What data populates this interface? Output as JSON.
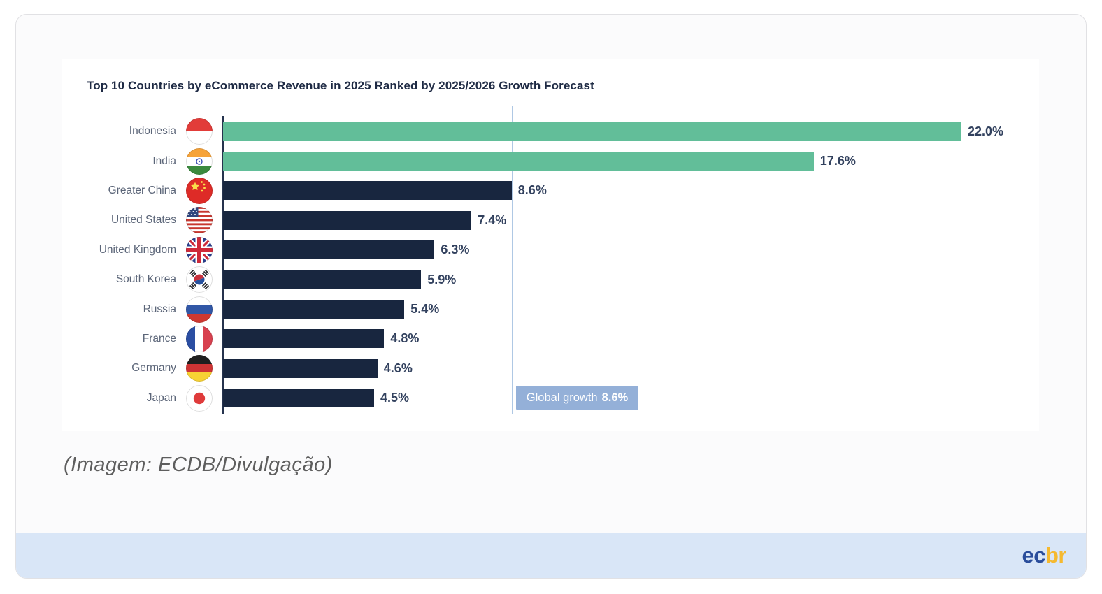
{
  "chart_data": {
    "type": "bar",
    "orientation": "horizontal",
    "title": "Top 10 Countries by eCommerce Revenue in 2025 Ranked by 2025/2026 Growth Forecast",
    "value_unit": "%",
    "xlim": [
      0,
      29
    ],
    "grid": false,
    "legend": false,
    "bar_colors": {
      "above_global": "#62be99",
      "below_global": "#18263f"
    },
    "reference_line": {
      "label": "Global growth",
      "value": 8.6,
      "display": "8.6%",
      "line_color": "#afc8e4",
      "badge_color": "#94b0d8"
    },
    "rows": [
      {
        "country": "Indonesia",
        "flag": "indonesia-flag-icon",
        "value": 22.0,
        "display": "22.0%",
        "color": "#62be99"
      },
      {
        "country": "India",
        "flag": "india-flag-icon",
        "value": 17.6,
        "display": "17.6%",
        "color": "#62be99"
      },
      {
        "country": "Greater China",
        "flag": "china-flag-icon",
        "value": 8.6,
        "display": "8.6%",
        "color": "#18263f"
      },
      {
        "country": "United States",
        "flag": "united-states-flag-icon",
        "value": 7.4,
        "display": "7.4%",
        "color": "#18263f"
      },
      {
        "country": "United Kingdom",
        "flag": "united-kingdom-flag-icon",
        "value": 6.3,
        "display": "6.3%",
        "color": "#18263f"
      },
      {
        "country": "South Korea",
        "flag": "south-korea-flag-icon",
        "value": 5.9,
        "display": "5.9%",
        "color": "#18263f"
      },
      {
        "country": "Russia",
        "flag": "russia-flag-icon",
        "value": 5.4,
        "display": "5.4%",
        "color": "#18263f"
      },
      {
        "country": "France",
        "flag": "france-flag-icon",
        "value": 4.8,
        "display": "4.8%",
        "color": "#18263f"
      },
      {
        "country": "Germany",
        "flag": "germany-flag-icon",
        "value": 4.6,
        "display": "4.6%",
        "color": "#18263f"
      },
      {
        "country": "Japan",
        "flag": "japan-flag-icon",
        "value": 4.5,
        "display": "4.5%",
        "color": "#18263f"
      }
    ]
  },
  "caption": {
    "text": "(Imagem: ECDB/Divulgação)"
  },
  "footer": {
    "logo": {
      "part1": "ec",
      "part2": "br",
      "part1_color": "#2a4d9b",
      "part2_color": "#f5b930"
    }
  }
}
